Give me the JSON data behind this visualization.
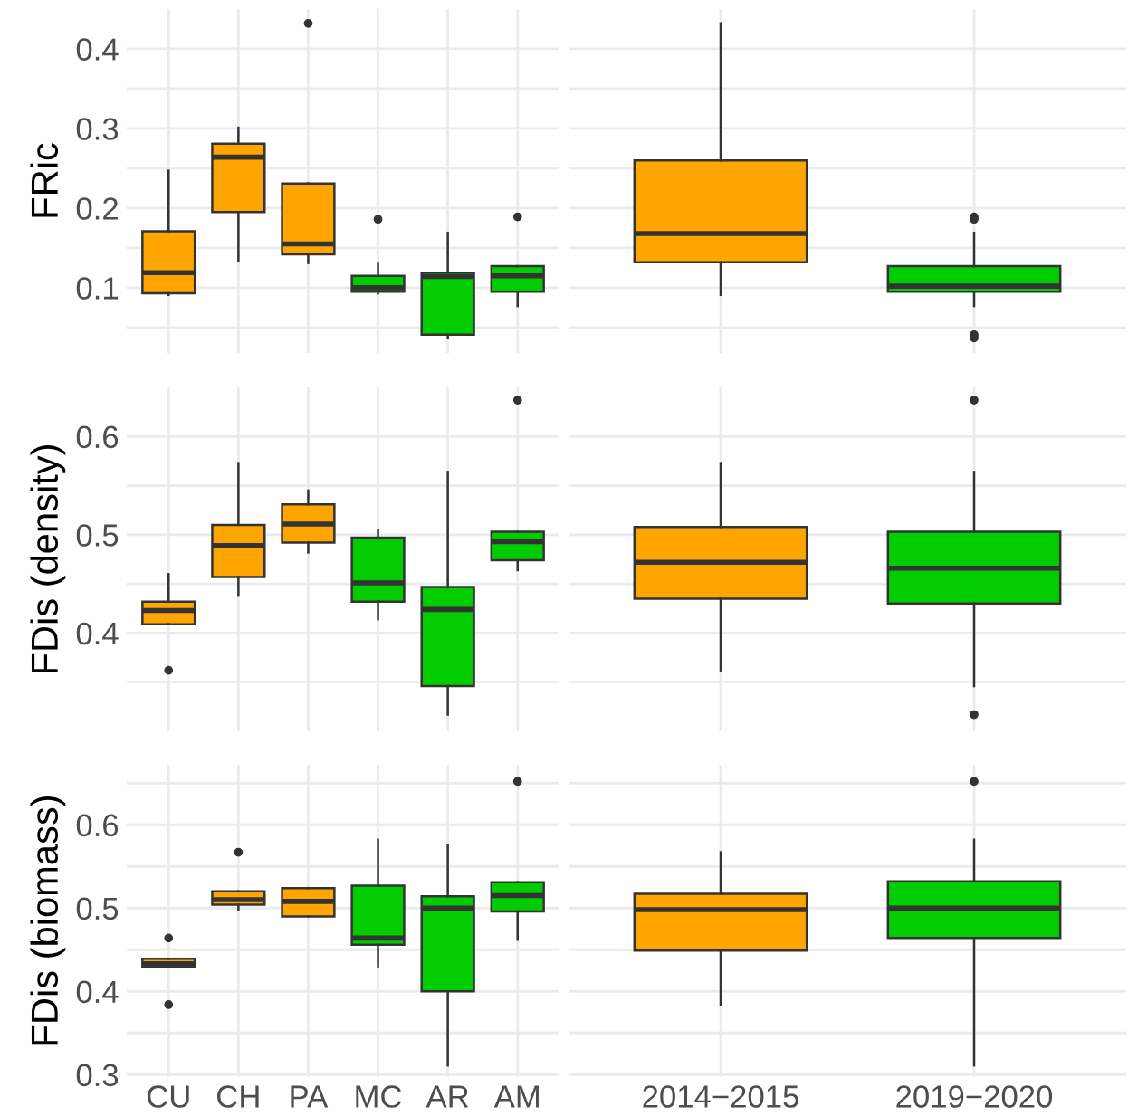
{
  "chart_data": [
    {
      "type": "box",
      "ylabel": "FRic",
      "categories": [
        "CU",
        "CH",
        "PA",
        "MC",
        "AR",
        "AM"
      ],
      "colors": [
        "#ffa500",
        "#ffa500",
        "#ffa500",
        "#00cc00",
        "#00cc00",
        "#00cc00"
      ],
      "ylim": [
        0.018,
        0.45
      ],
      "yticks": [
        {
          "value": 0.05,
          "label": null
        },
        0.1,
        {
          "value": 0.15,
          "label": null
        },
        0.2,
        {
          "value": 0.25,
          "label": null
        },
        0.3,
        {
          "value": 0.35,
          "label": null
        },
        0.4
      ],
      "grid": true,
      "tick_labels": "y",
      "boxes": [
        {
          "low": 0.091,
          "q1": 0.093,
          "median": 0.119,
          "q3": 0.171,
          "high": 0.247
        },
        {
          "low": 0.133,
          "q1": 0.195,
          "median": 0.264,
          "q3": 0.281,
          "high": 0.301
        },
        {
          "low": 0.131,
          "q1": 0.142,
          "median": 0.155,
          "q3": 0.231,
          "high": 0.231,
          "outliers": [
            0.432
          ]
        },
        {
          "low": 0.093,
          "q1": 0.095,
          "median": 0.1,
          "q3": 0.115,
          "high": 0.13,
          "outliers": [
            0.186
          ]
        },
        {
          "low": 0.037,
          "q1": 0.041,
          "median": 0.114,
          "q3": 0.119,
          "high": 0.169
        },
        {
          "low": 0.077,
          "q1": 0.095,
          "median": 0.115,
          "q3": 0.127,
          "high": 0.127,
          "outliers": [
            0.189
          ]
        }
      ]
    },
    {
      "type": "box",
      "categories": [
        "2014−2015",
        "2019−2020"
      ],
      "colors": [
        "#ffa500",
        "#00cc00"
      ],
      "ylim": [
        0.018,
        0.45
      ],
      "yticks": [
        {
          "value": 0.05,
          "label": null
        },
        {
          "value": 0.1,
          "label": null
        },
        {
          "value": 0.15,
          "label": null
        },
        {
          "value": 0.2,
          "label": null
        },
        {
          "value": 0.25,
          "label": null
        },
        {
          "value": 0.3,
          "label": null
        },
        {
          "value": 0.35,
          "label": null
        },
        {
          "value": 0.4,
          "label": null
        }
      ],
      "grid": true,
      "tick_labels": false,
      "boxes": [
        {
          "low": 0.091,
          "q1": 0.132,
          "median": 0.168,
          "q3": 0.26,
          "high": 0.432
        },
        {
          "low": 0.077,
          "q1": 0.095,
          "median": 0.102,
          "q3": 0.127,
          "high": 0.169,
          "outliers": [
            0.189,
            0.186,
            0.041,
            0.037
          ]
        }
      ]
    },
    {
      "type": "box",
      "ylabel": "FDis (density)",
      "categories": [
        "CU",
        "CH",
        "PA",
        "MC",
        "AR",
        "AM"
      ],
      "colors": [
        "#ffa500",
        "#ffa500",
        "#ffa500",
        "#00cc00",
        "#00cc00",
        "#00cc00"
      ],
      "ylim": [
        0.3,
        0.65
      ],
      "yticks": [
        {
          "value": 0.35,
          "label": null
        },
        0.4,
        {
          "value": 0.45,
          "label": null
        },
        0.5,
        {
          "value": 0.55,
          "label": null
        },
        0.6
      ],
      "grid": true,
      "tick_labels": "y",
      "boxes": [
        {
          "low": 0.409,
          "q1": 0.409,
          "median": 0.423,
          "q3": 0.432,
          "high": 0.46,
          "outliers": [
            0.362
          ]
        },
        {
          "low": 0.438,
          "q1": 0.457,
          "median": 0.489,
          "q3": 0.51,
          "high": 0.573
        },
        {
          "low": 0.482,
          "q1": 0.492,
          "median": 0.511,
          "q3": 0.531,
          "high": 0.545
        },
        {
          "low": 0.414,
          "q1": 0.432,
          "median": 0.451,
          "q3": 0.497,
          "high": 0.505
        },
        {
          "low": 0.317,
          "q1": 0.346,
          "median": 0.424,
          "q3": 0.447,
          "high": 0.564
        },
        {
          "low": 0.464,
          "q1": 0.474,
          "median": 0.493,
          "q3": 0.503,
          "high": 0.503,
          "outliers": [
            0.637
          ]
        }
      ]
    },
    {
      "type": "box",
      "categories": [
        "2014−2015",
        "2019−2020"
      ],
      "colors": [
        "#ffa500",
        "#00cc00"
      ],
      "ylim": [
        0.3,
        0.65
      ],
      "yticks": [
        {
          "value": 0.35,
          "label": null
        },
        {
          "value": 0.4,
          "label": null
        },
        {
          "value": 0.45,
          "label": null
        },
        {
          "value": 0.5,
          "label": null
        },
        {
          "value": 0.55,
          "label": null
        },
        {
          "value": 0.6,
          "label": null
        }
      ],
      "grid": true,
      "tick_labels": false,
      "boxes": [
        {
          "low": 0.362,
          "q1": 0.435,
          "median": 0.472,
          "q3": 0.508,
          "high": 0.573
        },
        {
          "low": 0.346,
          "q1": 0.43,
          "median": 0.466,
          "q3": 0.503,
          "high": 0.564,
          "outliers": [
            0.637,
            0.317
          ]
        }
      ]
    },
    {
      "type": "box",
      "ylabel": "FDis (biomass)",
      "categories": [
        "CU",
        "CH",
        "PA",
        "MC",
        "AR",
        "AM"
      ],
      "colors": [
        "#ffa500",
        "#ffa500",
        "#ffa500",
        "#00cc00",
        "#00cc00",
        "#00cc00"
      ],
      "ylim": [
        0.297,
        0.672
      ],
      "yticks": [
        0.3,
        {
          "value": 0.35,
          "label": null
        },
        0.4,
        {
          "value": 0.45,
          "label": null
        },
        0.5,
        {
          "value": 0.55,
          "label": null
        },
        0.6,
        {
          "value": 0.65,
          "label": null
        }
      ],
      "grid": true,
      "boxes": [
        {
          "low": 0.429,
          "q1": 0.429,
          "median": 0.433,
          "q3": 0.439,
          "high": 0.439,
          "outliers": [
            0.464,
            0.384
          ]
        },
        {
          "low": 0.498,
          "q1": 0.504,
          "median": 0.51,
          "q3": 0.52,
          "high": 0.52,
          "outliers": [
            0.567
          ]
        },
        {
          "low": 0.49,
          "q1": 0.49,
          "median": 0.508,
          "q3": 0.524,
          "high": 0.524
        },
        {
          "low": 0.43,
          "q1": 0.456,
          "median": 0.464,
          "q3": 0.527,
          "high": 0.582
        },
        {
          "low": 0.311,
          "q1": 0.4,
          "median": 0.5,
          "q3": 0.514,
          "high": 0.576
        },
        {
          "low": 0.462,
          "q1": 0.496,
          "median": 0.515,
          "q3": 0.531,
          "high": 0.531,
          "outliers": [
            0.652
          ]
        }
      ]
    },
    {
      "type": "box",
      "categories": [
        "2014−2015",
        "2019−2020"
      ],
      "colors": [
        "#ffa500",
        "#00cc00"
      ],
      "ylim": [
        0.297,
        0.672
      ],
      "yticks": [
        {
          "value": 0.3,
          "label": null
        },
        {
          "value": 0.35,
          "label": null
        },
        {
          "value": 0.4,
          "label": null
        },
        {
          "value": 0.45,
          "label": null
        },
        {
          "value": 0.5,
          "label": null
        },
        {
          "value": 0.55,
          "label": null
        },
        {
          "value": 0.6,
          "label": null
        },
        {
          "value": 0.65,
          "label": null
        }
      ],
      "grid": true,
      "tick_labels": "x",
      "boxes": [
        {
          "low": 0.384,
          "q1": 0.449,
          "median": 0.498,
          "q3": 0.517,
          "high": 0.567
        },
        {
          "low": 0.311,
          "q1": 0.464,
          "median": 0.5,
          "q3": 0.532,
          "high": 0.582,
          "outliers": [
            0.652
          ]
        }
      ]
    }
  ]
}
